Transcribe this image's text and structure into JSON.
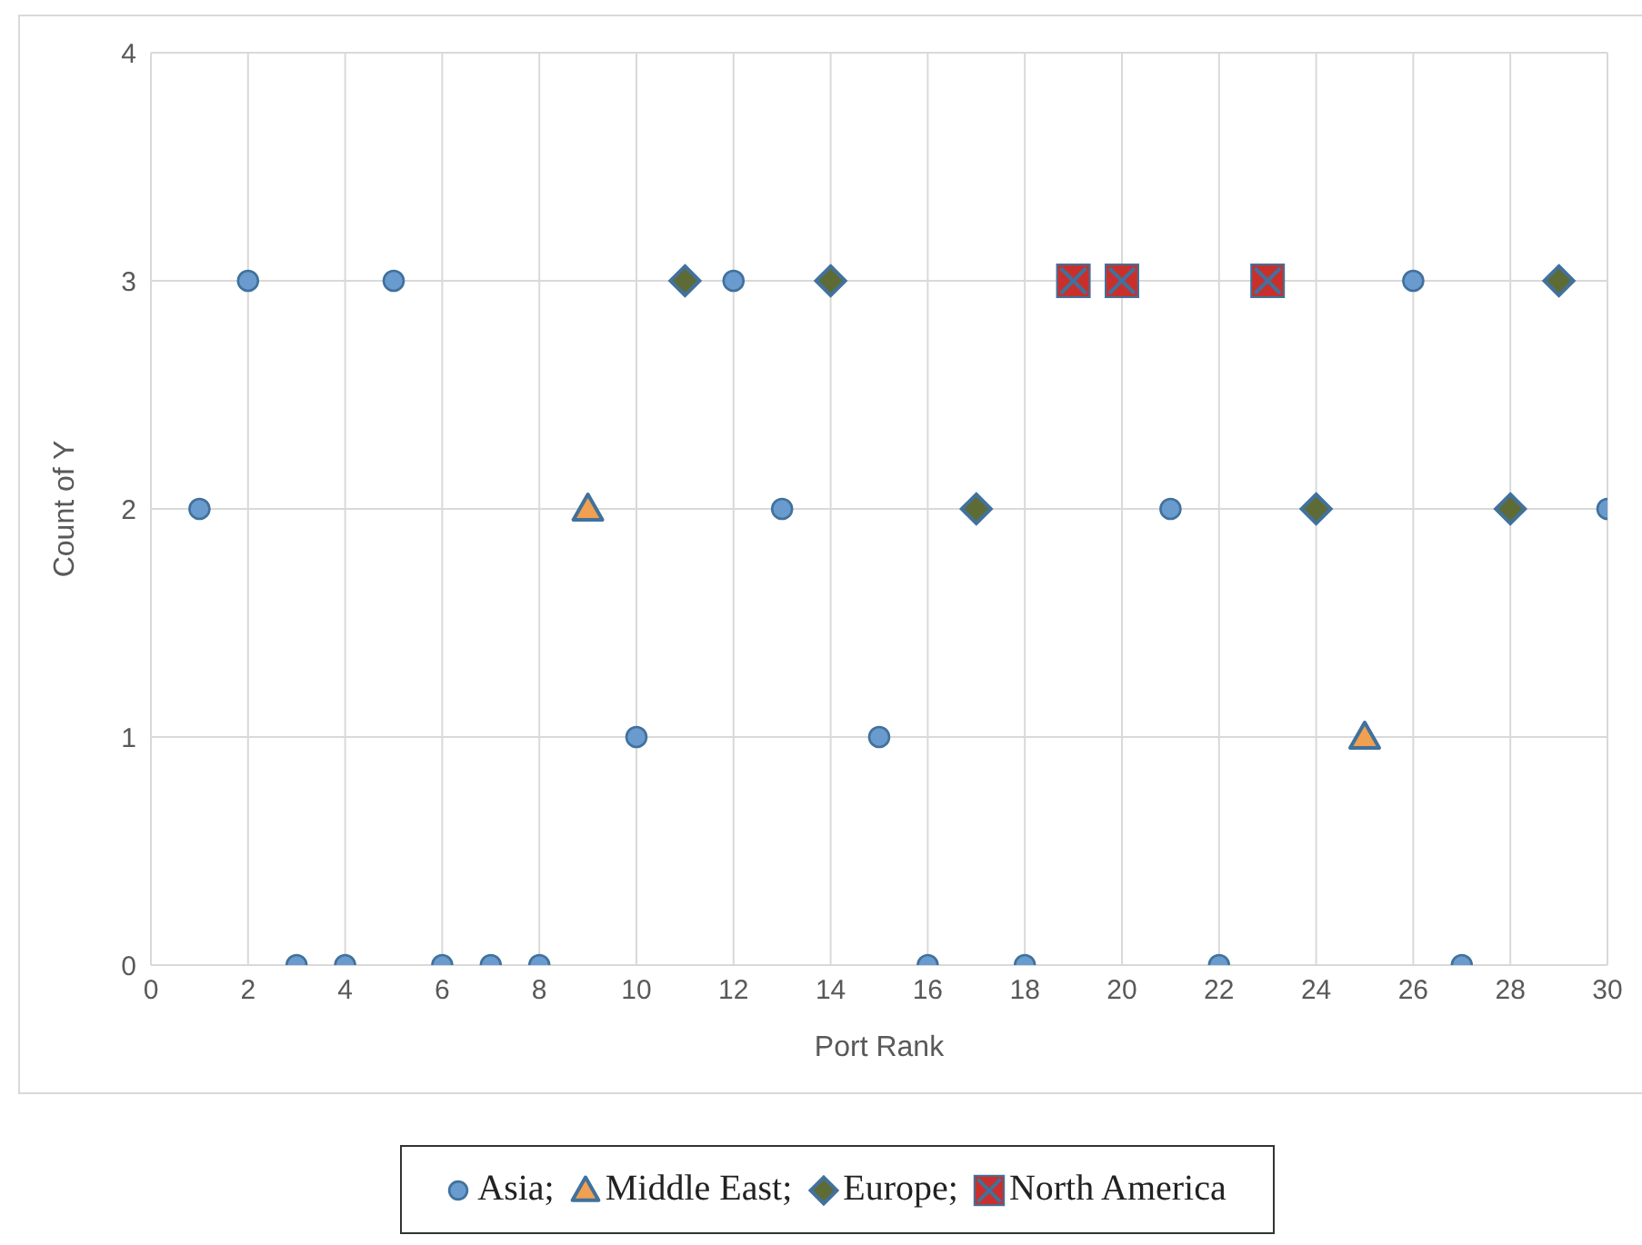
{
  "chart_data": {
    "type": "scatter",
    "xlabel": "Port Rank",
    "ylabel": "Count of Y",
    "xlim": [
      0,
      30
    ],
    "xticks": [
      0,
      2,
      4,
      6,
      8,
      10,
      12,
      14,
      16,
      18,
      20,
      22,
      24,
      26,
      28,
      30
    ],
    "ylim": [
      0,
      4
    ],
    "yticks": [
      0,
      1,
      2,
      3,
      4
    ],
    "grid": true,
    "legend": "bottom",
    "series": [
      {
        "name": "Asia;",
        "color": "#6a9bcf",
        "marker": "circle",
        "x": [
          1,
          2,
          3,
          4,
          5,
          6,
          7,
          8,
          10,
          12,
          13,
          15,
          16,
          18,
          21,
          22,
          26,
          27,
          30
        ],
        "values": [
          2,
          3,
          0,
          0,
          3,
          0,
          0,
          0,
          1,
          3,
          2,
          1,
          0,
          0,
          2,
          0,
          3,
          0,
          2
        ]
      },
      {
        "name": "Middle East;",
        "color": "#f0a050",
        "marker": "triangle",
        "x": [
          9,
          25
        ],
        "values": [
          2,
          1
        ]
      },
      {
        "name": "Europe;",
        "color": "#5f6b35",
        "marker": "diamond",
        "x": [
          11,
          14,
          17,
          24,
          28,
          29
        ],
        "values": [
          3,
          3,
          2,
          2,
          2,
          3
        ]
      },
      {
        "name": "North America",
        "color": "#c9302c",
        "marker": "square",
        "x": [
          19,
          20,
          23
        ],
        "values": [
          3,
          3,
          3
        ]
      }
    ]
  }
}
